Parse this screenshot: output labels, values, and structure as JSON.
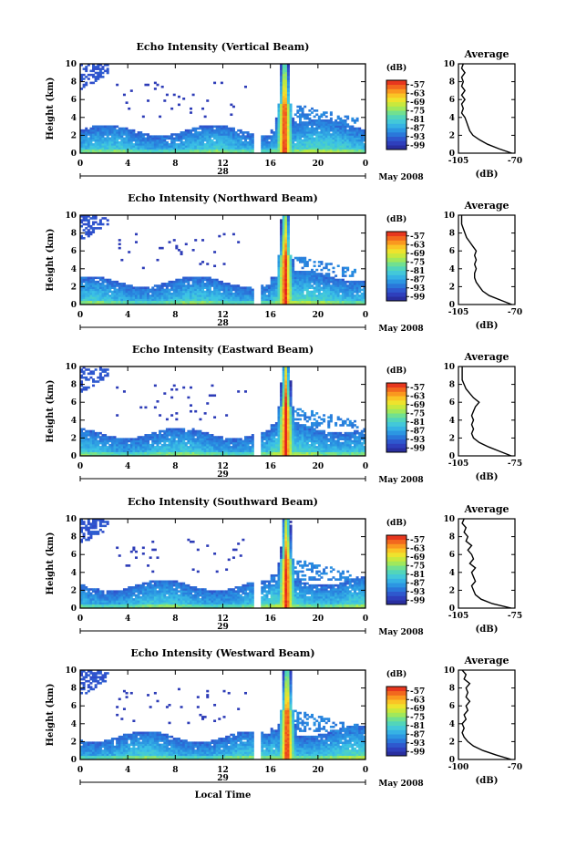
{
  "figure": {
    "date_label": "May 2008",
    "time_axis_label": "Local Time",
    "colorbar_unit": "(dB)",
    "avg_title": "Average",
    "avg_xlabel": "(dB)"
  },
  "chart_data": [
    {
      "type": "heatmap",
      "title": "Echo Intensity (Vertical Beam)",
      "xlabel": "",
      "ylabel": "Height (km)",
      "xticks": [
        "0",
        "4",
        "8",
        "12",
        "16",
        "20",
        "0"
      ],
      "day_label": "28",
      "yticks": [
        "0",
        "2",
        "4",
        "6",
        "8",
        "10"
      ],
      "xlim": [
        0,
        24
      ],
      "ylim": [
        0,
        10
      ],
      "colorbar_ticks": [
        "-57",
        "-63",
        "-69",
        "-75",
        "-81",
        "-87",
        "-93",
        "-99"
      ],
      "colorbar_range": [
        -102,
        -54
      ],
      "profile": {
        "xlim": [
          -105,
          -70
        ],
        "xticks": [
          "-105",
          "-70"
        ],
        "yticks": [
          "0",
          "2",
          "4",
          "6",
          "8",
          "10"
        ],
        "heights": [
          0,
          0.5,
          1,
          1.5,
          2,
          2.5,
          3,
          3.5,
          4,
          4.5,
          5,
          5.5,
          6,
          6.5,
          7,
          7.5,
          8,
          8.5,
          9,
          9.5,
          10
        ],
        "values": [
          -72,
          -80,
          -87,
          -92,
          -96,
          -98,
          -99,
          -100,
          -101,
          -103,
          -102,
          -103,
          -101,
          -103,
          -101,
          -103,
          -102,
          -103,
          -101,
          -103,
          -102
        ]
      }
    },
    {
      "type": "heatmap",
      "title": "Echo Intensity (Northward Beam)",
      "xlabel": "",
      "ylabel": "Height (km)",
      "xticks": [
        "0",
        "4",
        "8",
        "12",
        "16",
        "20",
        "0"
      ],
      "day_label": "28",
      "yticks": [
        "0",
        "2",
        "4",
        "6",
        "8",
        "10"
      ],
      "xlim": [
        0,
        24
      ],
      "ylim": [
        0,
        10
      ],
      "colorbar_ticks": [
        "-57",
        "-63",
        "-69",
        "-75",
        "-81",
        "-87",
        "-93",
        "-99"
      ],
      "colorbar_range": [
        -102,
        -54
      ],
      "profile": {
        "xlim": [
          -105,
          -70
        ],
        "xticks": [
          "-105",
          "-70"
        ],
        "yticks": [
          "0",
          "2",
          "4",
          "6",
          "8",
          "10"
        ],
        "heights": [
          0,
          0.5,
          1,
          1.5,
          2,
          2.5,
          3,
          3.5,
          4,
          4.5,
          5,
          5.5,
          6,
          6.5,
          7,
          7.5,
          8,
          8.5,
          9,
          9.5,
          10
        ],
        "values": [
          -72,
          -79,
          -86,
          -90,
          -92,
          -94,
          -95,
          -95,
          -94,
          -95,
          -94,
          -95,
          -94,
          -96,
          -98,
          -100,
          -101,
          -102,
          -103,
          -103,
          -103
        ]
      }
    },
    {
      "type": "heatmap",
      "title": "Echo Intensity (Eastward Beam)",
      "xlabel": "",
      "ylabel": "Height (km)",
      "xticks": [
        "0",
        "4",
        "8",
        "12",
        "16",
        "20",
        "0"
      ],
      "day_label": "29",
      "yticks": [
        "0",
        "2",
        "4",
        "6",
        "8",
        "10"
      ],
      "xlim": [
        0,
        24
      ],
      "ylim": [
        0,
        10
      ],
      "colorbar_ticks": [
        "-57",
        "-63",
        "-69",
        "-75",
        "-81",
        "-87",
        "-93",
        "-99"
      ],
      "colorbar_range": [
        -102,
        -54
      ],
      "profile": {
        "xlim": [
          -105,
          -75
        ],
        "xticks": [
          "-105",
          "-75"
        ],
        "yticks": [
          "0",
          "2",
          "4",
          "6",
          "8",
          "10"
        ],
        "heights": [
          0,
          0.5,
          1,
          1.5,
          2,
          2.5,
          3,
          3.5,
          4,
          4.5,
          5,
          5.5,
          6,
          6.5,
          7,
          7.5,
          8,
          8.5,
          9,
          9.5,
          10
        ],
        "values": [
          -77,
          -83,
          -89,
          -94,
          -97,
          -98,
          -97,
          -98,
          -97,
          -98,
          -97,
          -96,
          -94,
          -97,
          -99,
          -101,
          -102,
          -103,
          -103,
          -103,
          -103
        ]
      }
    },
    {
      "type": "heatmap",
      "title": "Echo Intensity (Southward Beam)",
      "xlabel": "",
      "ylabel": "Height (km)",
      "xticks": [
        "0",
        "4",
        "8",
        "12",
        "16",
        "20",
        "0"
      ],
      "day_label": "29",
      "yticks": [
        "0",
        "2",
        "4",
        "6",
        "8",
        "10"
      ],
      "xlim": [
        0,
        24
      ],
      "ylim": [
        0,
        10
      ],
      "colorbar_ticks": [
        "-57",
        "-63",
        "-69",
        "-75",
        "-81",
        "-87",
        "-93",
        "-99"
      ],
      "colorbar_range": [
        -102,
        -54
      ],
      "profile": {
        "xlim": [
          -105,
          -75
        ],
        "xticks": [
          "-105",
          "-75"
        ],
        "yticks": [
          "0",
          "2",
          "4",
          "6",
          "8",
          "10"
        ],
        "heights": [
          0,
          0.5,
          1,
          1.5,
          2,
          2.5,
          3,
          3.5,
          4,
          4.5,
          5,
          5.5,
          6,
          6.5,
          7,
          7.5,
          8,
          8.5,
          9,
          9.5,
          10
        ],
        "values": [
          -77,
          -87,
          -93,
          -96,
          -97,
          -98,
          -96,
          -97,
          -98,
          -96,
          -99,
          -97,
          -98,
          -100,
          -98,
          -101,
          -100,
          -102,
          -101,
          -103,
          -102
        ]
      }
    },
    {
      "type": "heatmap",
      "title": "Echo Intensity (Westward Beam)",
      "xlabel": "Local Time",
      "ylabel": "Height (km)",
      "xticks": [
        "0",
        "4",
        "8",
        "12",
        "16",
        "20",
        "0"
      ],
      "day_label": "29",
      "yticks": [
        "0",
        "2",
        "4",
        "6",
        "8",
        "10"
      ],
      "xlim": [
        0,
        24
      ],
      "ylim": [
        0,
        10
      ],
      "colorbar_ticks": [
        "-57",
        "-63",
        "-69",
        "-75",
        "-81",
        "-87",
        "-93",
        "-99"
      ],
      "colorbar_range": [
        -102,
        -54
      ],
      "profile": {
        "xlim": [
          -100,
          -70
        ],
        "xticks": [
          "-100",
          "-70"
        ],
        "yticks": [
          "0",
          "2",
          "4",
          "6",
          "8",
          "10"
        ],
        "heights": [
          0,
          0.5,
          1,
          1.5,
          2,
          2.5,
          3,
          3.5,
          4,
          4.5,
          5,
          5.5,
          6,
          6.5,
          7,
          7.5,
          8,
          8.5,
          9,
          9.5,
          10
        ],
        "values": [
          -72,
          -80,
          -87,
          -92,
          -95,
          -97,
          -98,
          -97,
          -98,
          -96,
          -97,
          -95,
          -96,
          -94,
          -96,
          -95,
          -96,
          -94,
          -97,
          -96,
          -98
        ]
      }
    }
  ]
}
